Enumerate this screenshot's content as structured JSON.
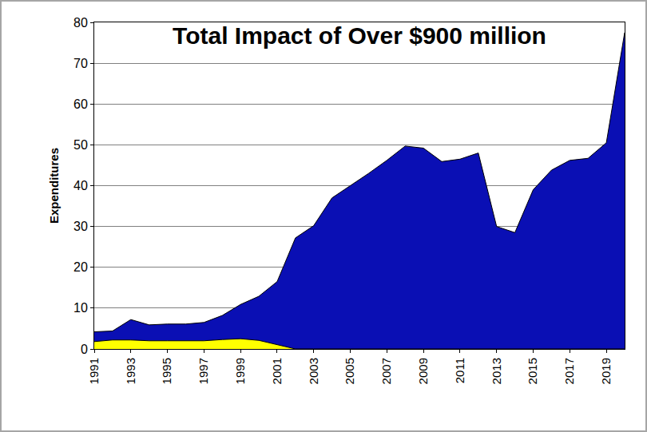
{
  "chart_data": {
    "type": "area",
    "title": "Total Impact of Over $900 million",
    "y_label": "Expenditures",
    "stacked": true,
    "grid": true,
    "x": [
      1991,
      1992,
      1993,
      1994,
      1995,
      1996,
      1997,
      1998,
      1999,
      2000,
      2001,
      2002,
      2003,
      2004,
      2005,
      2006,
      2007,
      2008,
      2009,
      2010,
      2011,
      2012,
      2013,
      2014,
      2015,
      2016,
      2017,
      2018,
      2019,
      2020
    ],
    "series": [
      {
        "color": "#ffff00",
        "values": [
          1.8,
          2.2,
          2.2,
          2.0,
          2.0,
          2.0,
          2.0,
          2.3,
          2.5,
          2.1,
          1.0,
          0,
          0,
          0,
          0,
          0,
          0,
          0,
          0,
          0,
          0,
          0,
          0,
          0,
          0,
          0,
          0,
          0,
          0,
          0
        ]
      },
      {
        "color": "#0a0fb4",
        "values": [
          2.4,
          2.2,
          5.0,
          3.9,
          4.1,
          4.1,
          4.5,
          5.9,
          8.4,
          10.8,
          15.5,
          27.2,
          30.2,
          37,
          40,
          43,
          46.2,
          49.7,
          49.2,
          45.9,
          46.5,
          48,
          30,
          28.5,
          39,
          43.8,
          46.2,
          46.7,
          50.5,
          77.5
        ]
      }
    ],
    "xlim": [
      1991,
      2020
    ],
    "xticks": [
      1991,
      1993,
      1995,
      1997,
      1999,
      2001,
      2003,
      2005,
      2007,
      2009,
      2011,
      2013,
      2015,
      2017,
      2019
    ],
    "ylim": [
      0,
      80
    ],
    "yticks": [
      0,
      10,
      20,
      30,
      40,
      50,
      60,
      70,
      80
    ]
  }
}
